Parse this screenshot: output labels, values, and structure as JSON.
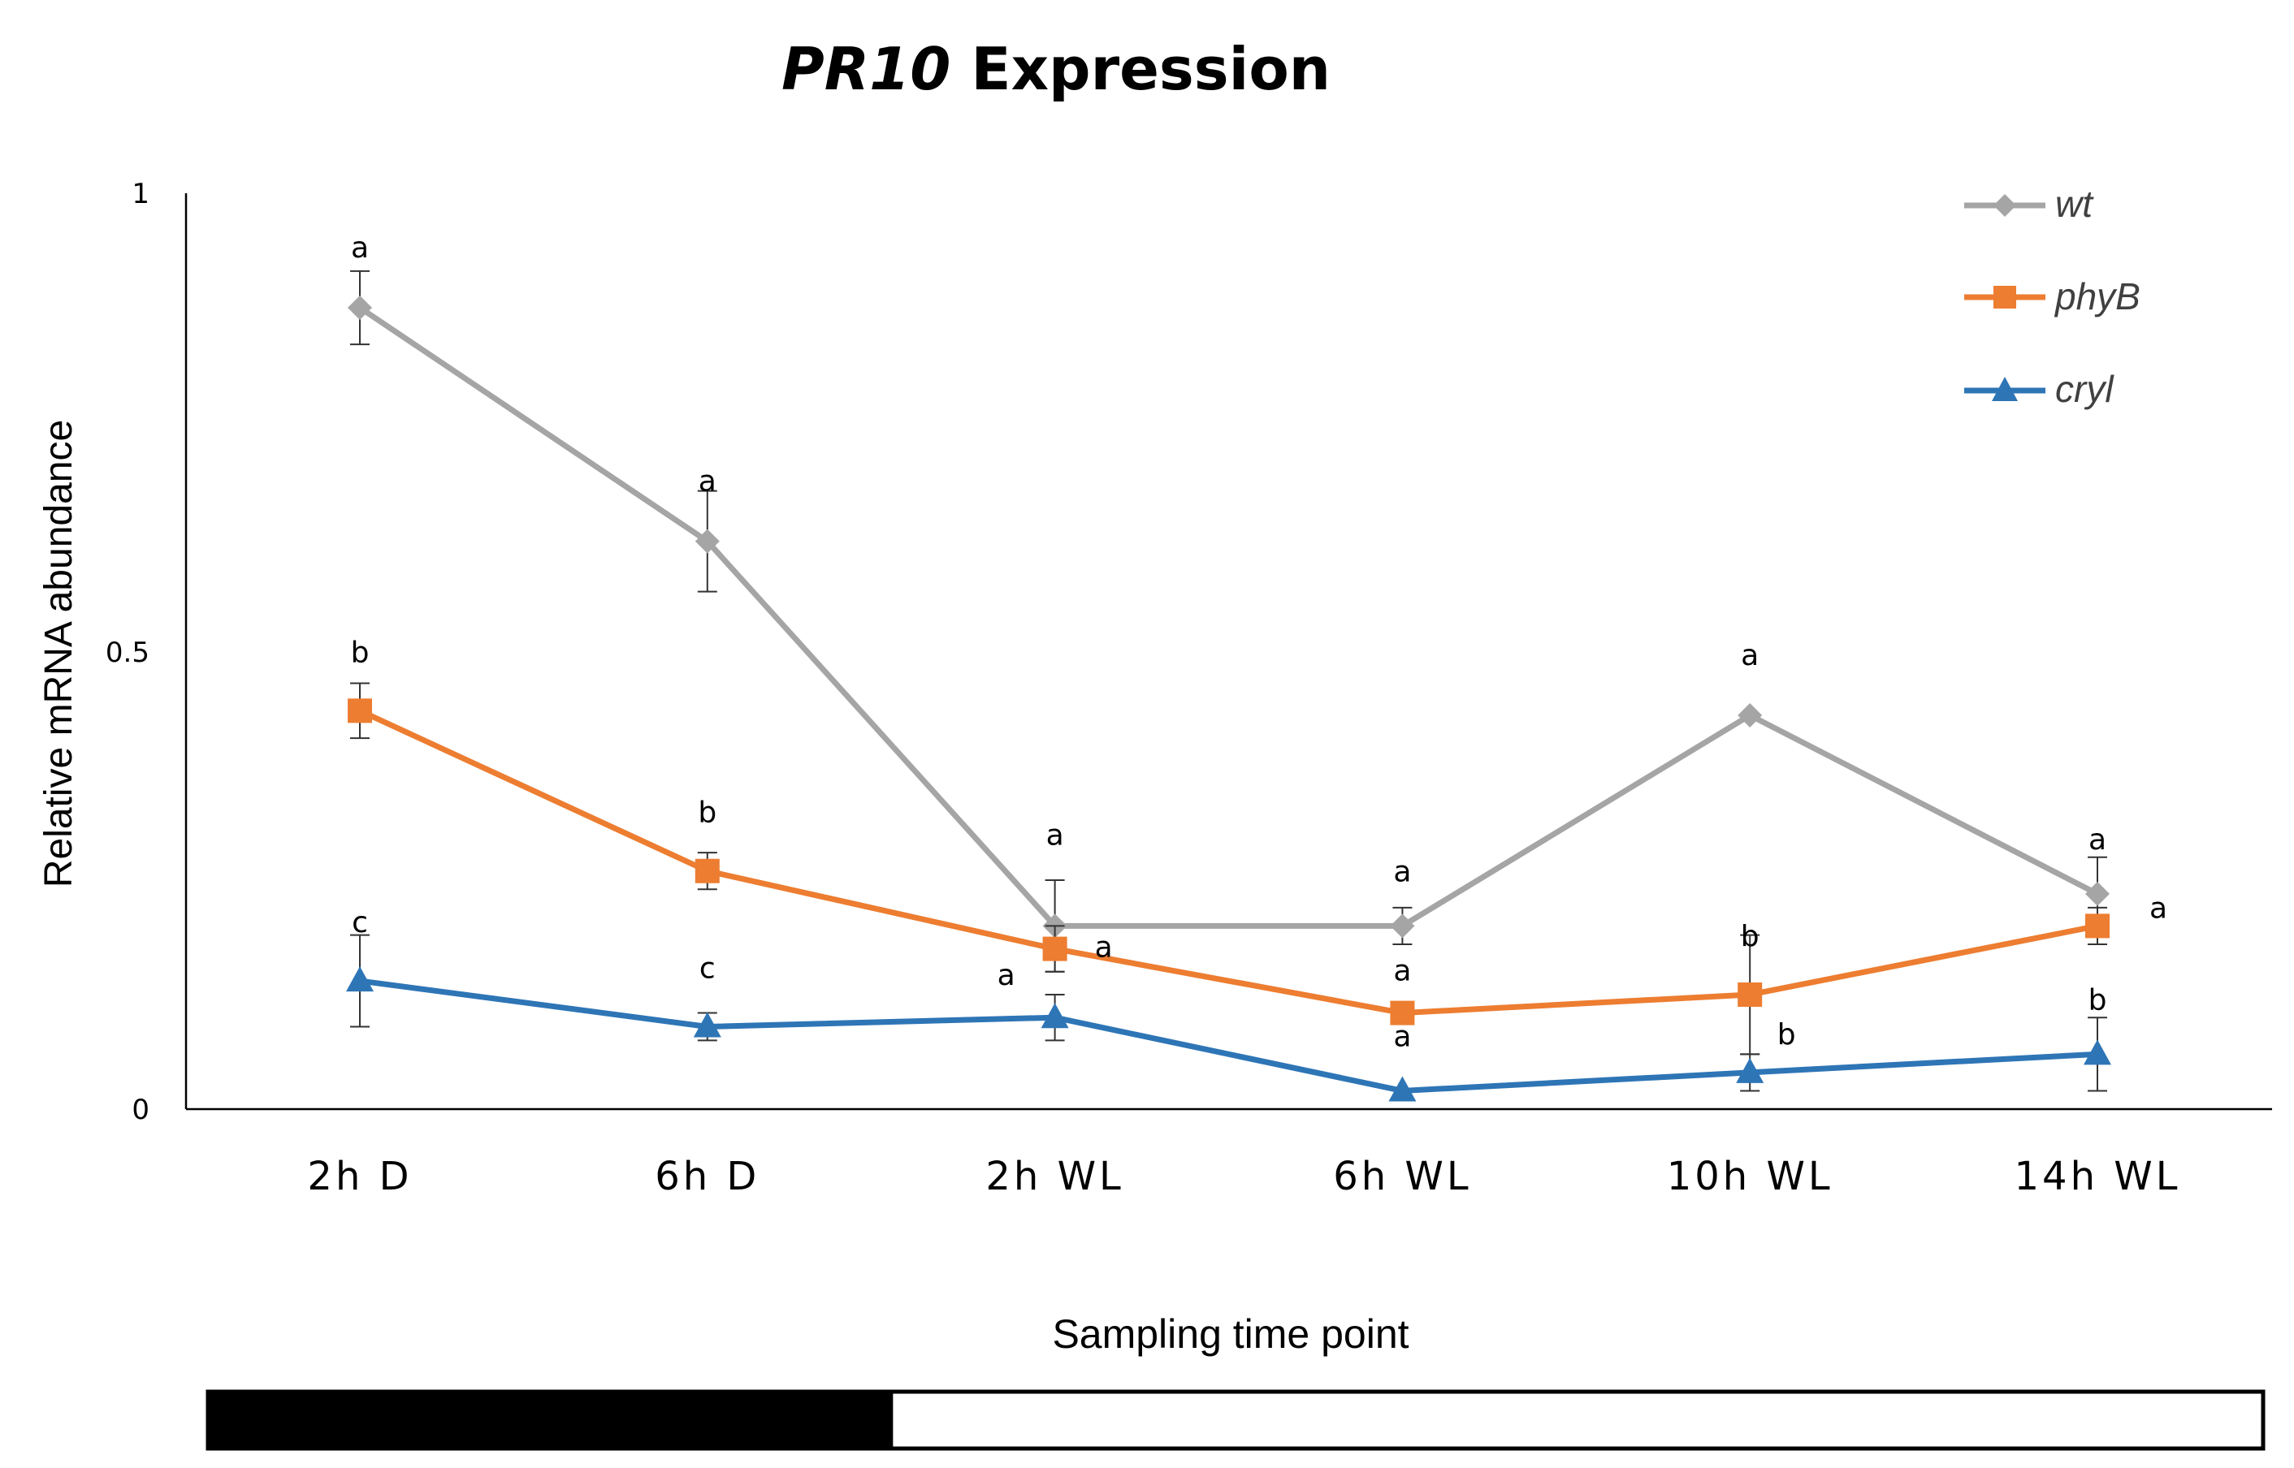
{
  "chart_data": {
    "type": "line",
    "title": {
      "gene": "PR10",
      "rest": " Expression"
    },
    "xlabel": "Sampling time point",
    "ylabel": "Relative mRNA abundance",
    "ylim": [
      0,
      1
    ],
    "yticks": [
      "0",
      "0.5",
      "1"
    ],
    "categories": [
      "2h D",
      "6h D",
      "2h WL",
      "6h WL",
      "10h WL",
      "14h WL"
    ],
    "grid": false,
    "legend_position": "top-right",
    "series": [
      {
        "name": "wt",
        "color": "#a5a5a5",
        "marker": "diamond",
        "values": [
          0.875,
          0.62,
          0.2,
          0.2,
          0.43,
          0.235
        ],
        "errors": [
          0.04,
          0.055,
          0.05,
          0.02,
          0.0,
          0.04
        ],
        "letters": [
          "a",
          "a",
          "a",
          "a",
          "a",
          "a"
        ]
      },
      {
        "name": "phyB",
        "color": "#ed7d31",
        "marker": "square",
        "values": [
          0.435,
          0.26,
          0.175,
          0.105,
          0.125,
          0.2
        ],
        "errors": [
          0.03,
          0.02,
          0.025,
          0.005,
          0.065,
          0.02
        ],
        "letters": [
          "b",
          "b",
          "a",
          "a",
          "b",
          "a"
        ]
      },
      {
        "name": "cryl",
        "color": "#2e75b6",
        "marker": "triangle",
        "values": [
          0.14,
          0.09,
          0.1,
          0.02,
          0.04,
          0.06
        ],
        "errors": [
          0.05,
          0.015,
          0.025,
          0.0,
          0.02,
          0.04
        ],
        "letters": [
          "c",
          "c",
          "a",
          "a",
          "b",
          "b"
        ]
      }
    ],
    "light_bar": {
      "dark_portion": 2,
      "light_portion": 4
    }
  }
}
